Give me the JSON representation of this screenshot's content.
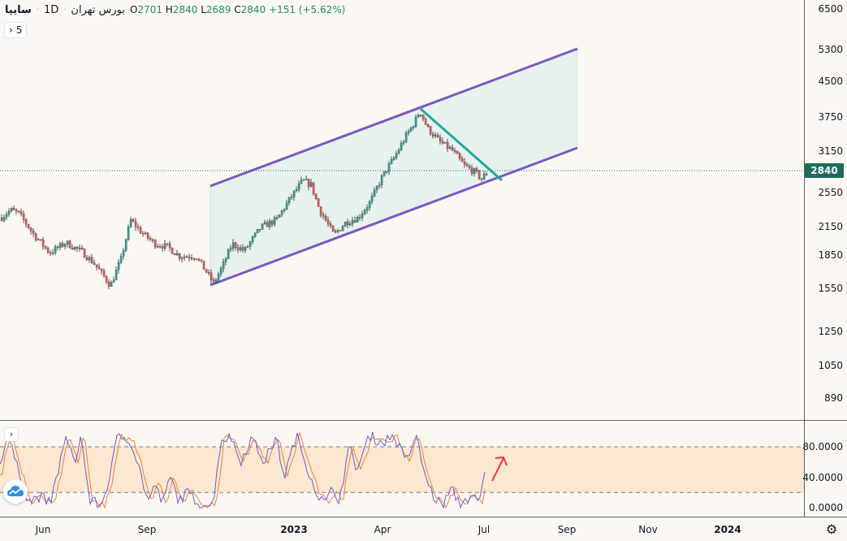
{
  "legend": {
    "symbol": "سایپا",
    "interval": "1D",
    "exchange": "بورس تهران",
    "open_key": "O",
    "open": "2701",
    "high_key": "H",
    "high": "2840",
    "low_key": "L",
    "low": "2689",
    "close_key": "C",
    "close": "2840",
    "change": "+151 (+5.62%)"
  },
  "collapse_button": {
    "count": "5"
  },
  "last_price": "2840",
  "price_axis": [
    "6500",
    "5300",
    "4500",
    "3750",
    "3150",
    "2550",
    "2150",
    "1850",
    "1550",
    "1250",
    "1050",
    "890"
  ],
  "osc_axis": [
    "80.0000",
    "40.0000",
    "0.0000"
  ],
  "time_axis": [
    {
      "label": "Jun",
      "bold": false
    },
    {
      "label": "Sep",
      "bold": false
    },
    {
      "label": "2023",
      "bold": true
    },
    {
      "label": "Apr",
      "bold": false
    },
    {
      "label": "Jul",
      "bold": false
    },
    {
      "label": "Sep",
      "bold": false
    },
    {
      "label": "Nov",
      "bold": false
    },
    {
      "label": "2024",
      "bold": true
    }
  ],
  "colors": {
    "up": "#26a69a",
    "down": "#ef5350",
    "channel_line": "#7e57c2",
    "channel_fill": "#e6f1ee",
    "trendline": "#26a69a",
    "last_price_bg": "#1e6b5e",
    "osc_band": "#fce7d0",
    "stoch_k": "#6a5acd",
    "stoch_d": "#f2803a",
    "annotation_arrow": "#f23645"
  },
  "icons": {
    "chevron": "chevron-right-icon",
    "logo": "tradingview-logo-icon",
    "settings": "gear-icon",
    "annotation": "arrow-up-right-icon"
  }
}
